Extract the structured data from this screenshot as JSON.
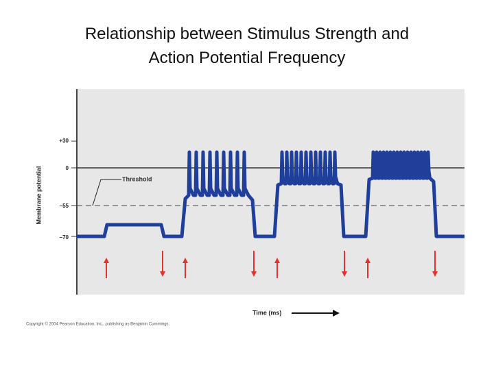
{
  "title_lines": [
    "Relationship between Stimulus Strength and",
    "Action Potential Frequency"
  ],
  "figure": {
    "y_axis_label": "Membrane potential",
    "y_ticks": [
      "+30",
      "0",
      "–55",
      "–70"
    ],
    "threshold_label": "Threshold",
    "x_axis_label": "Time (ms)",
    "copyright": "Copyright © 2004 Pearson Education, Inc., publishing as Benjamin Cummings."
  }
}
